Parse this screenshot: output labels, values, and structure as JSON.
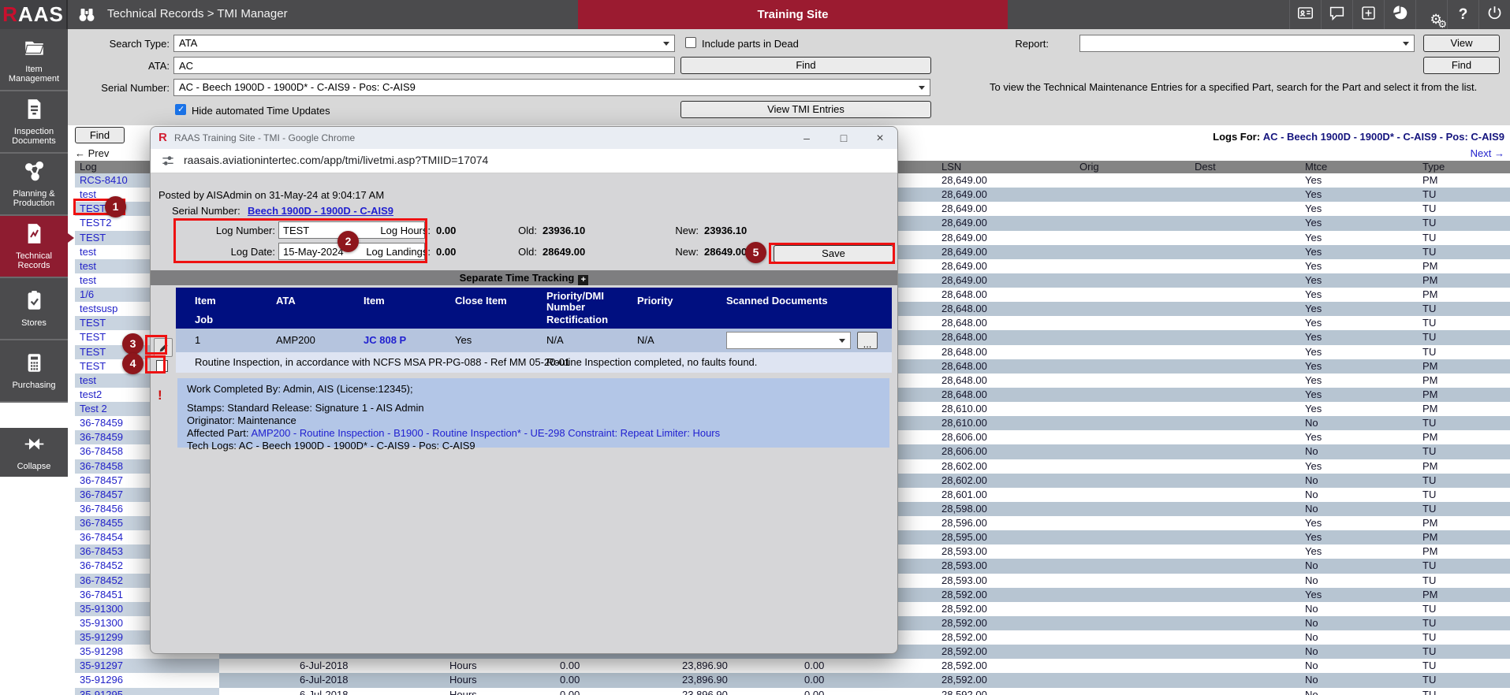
{
  "header": {
    "logo_r": "R",
    "logo_rest": "AAS",
    "breadcrumb": "Technical Records > TMI Manager",
    "banner": "Training Site",
    "toolbar_icons": [
      "id-card-icon",
      "chat-icon",
      "add-icon",
      "pie-chart-icon",
      "settings-icon",
      "help-icon",
      "power-icon"
    ]
  },
  "sidebar": {
    "items": [
      {
        "label": "Item Management",
        "icon": "folder-icon",
        "active": false
      },
      {
        "label": "Inspection Documents",
        "icon": "inspection-document-icon",
        "active": false
      },
      {
        "label": "Planning & Production",
        "icon": "planning-network-icon",
        "active": false
      },
      {
        "label": "Technical Records",
        "icon": "technical-records-icon",
        "active": true
      },
      {
        "label": "Stores",
        "icon": "stores-clipboard-icon",
        "active": false
      },
      {
        "label": "Purchasing",
        "icon": "calculator-icon",
        "active": false
      }
    ],
    "collapse_label": "Collapse",
    "collapse_icon": "collapse-icon"
  },
  "filters": {
    "search_type_label": "Search Type:",
    "search_type_value": "ATA",
    "include_dead_label": "Include parts in Dead",
    "include_dead_checked": false,
    "ata_label": "ATA:",
    "ata_value": "AC",
    "find_button": "Find",
    "serial_label": "Serial Number:",
    "serial_value": "AC - Beech 1900D - 1900D* - C-AIS9 - Pos: C-AIS9",
    "hide_time_updates_label": "Hide automated Time Updates",
    "hide_time_updates_checked": true,
    "view_tmi_button": "View TMI Entries",
    "report_label": "Report:",
    "report_value": "",
    "view_button": "View",
    "report_find_button": "Find",
    "hint": "To view the Technical Maintenance Entries for a specified Part, search for the Part and select it from the list."
  },
  "log_panel": {
    "find_button": "Find",
    "prev_link": "← Prev",
    "next_link": "Next →",
    "logs_for_label": "Logs For:",
    "logs_for_value": "AC - Beech 1900D - 1900D* - C-AIS9 - Pos: C-AIS9",
    "column_header": "Log",
    "selected_index": 4,
    "items": [
      "RCS-8410",
      "test",
      "TEST",
      "TEST2",
      "TEST",
      "test",
      "test",
      "test",
      "1/6",
      "testsusp",
      "TEST",
      "TEST",
      "TEST",
      "TEST",
      "test",
      "test2",
      "Test 2",
      "36-78459",
      "36-78459",
      "36-78458",
      "36-78458",
      "36-78457",
      "36-78457",
      "36-78456",
      "36-78455",
      "36-78454",
      "36-78453",
      "36-78452",
      "36-78452",
      "36-78451",
      "35-91300",
      "35-91300",
      "35-91299",
      "35-91298",
      "35-91297",
      "35-91296",
      "35-91295"
    ]
  },
  "records_table": {
    "columns": [
      "LSN",
      "Orig",
      "Dest",
      "Mtce",
      "Type"
    ],
    "rows": [
      {
        "lsn": "28,649.00",
        "mtce": "Yes",
        "type": "PM"
      },
      {
        "lsn": "28,649.00",
        "mtce": "Yes",
        "type": "TU"
      },
      {
        "lsn": "28,649.00",
        "mtce": "Yes",
        "type": "TU"
      },
      {
        "lsn": "28,649.00",
        "mtce": "Yes",
        "type": "TU"
      },
      {
        "lsn": "28,649.00",
        "mtce": "Yes",
        "type": "TU"
      },
      {
        "lsn": "28,649.00",
        "mtce": "Yes",
        "type": "TU"
      },
      {
        "lsn": "28,649.00",
        "mtce": "Yes",
        "type": "PM"
      },
      {
        "lsn": "28,649.00",
        "mtce": "Yes",
        "type": "PM"
      },
      {
        "lsn": "28,648.00",
        "mtce": "Yes",
        "type": "PM"
      },
      {
        "lsn": "28,648.00",
        "mtce": "Yes",
        "type": "TU"
      },
      {
        "lsn": "28,648.00",
        "mtce": "Yes",
        "type": "TU"
      },
      {
        "lsn": "28,648.00",
        "mtce": "Yes",
        "type": "TU"
      },
      {
        "lsn": "28,648.00",
        "mtce": "Yes",
        "type": "TU"
      },
      {
        "lsn": "28,648.00",
        "mtce": "Yes",
        "type": "PM"
      },
      {
        "lsn": "28,648.00",
        "mtce": "Yes",
        "type": "PM"
      },
      {
        "lsn": "28,648.00",
        "mtce": "Yes",
        "type": "PM"
      },
      {
        "lsn": "28,610.00",
        "mtce": "Yes",
        "type": "PM"
      },
      {
        "lsn": "28,610.00",
        "mtce": "No",
        "type": "TU"
      },
      {
        "lsn": "28,606.00",
        "mtce": "Yes",
        "type": "PM"
      },
      {
        "lsn": "28,606.00",
        "mtce": "No",
        "type": "TU"
      },
      {
        "lsn": "28,602.00",
        "mtce": "Yes",
        "type": "PM"
      },
      {
        "lsn": "28,602.00",
        "mtce": "No",
        "type": "TU"
      },
      {
        "lsn": "28,601.00",
        "mtce": "No",
        "type": "TU"
      },
      {
        "lsn": "28,598.00",
        "mtce": "No",
        "type": "TU"
      },
      {
        "lsn": "28,596.00",
        "mtce": "Yes",
        "type": "PM"
      },
      {
        "lsn": "28,595.00",
        "mtce": "Yes",
        "type": "PM"
      },
      {
        "lsn": "28,593.00",
        "mtce": "Yes",
        "type": "PM"
      },
      {
        "lsn": "28,593.00",
        "mtce": "No",
        "type": "TU"
      },
      {
        "lsn": "28,593.00",
        "mtce": "No",
        "type": "TU"
      },
      {
        "lsn": "28,592.00",
        "mtce": "Yes",
        "type": "PM"
      },
      {
        "lsn": "28,592.00",
        "mtce": "No",
        "type": "TU"
      },
      {
        "lsn": "28,592.00",
        "mtce": "No",
        "type": "TU"
      },
      {
        "lsn": "28,592.00",
        "mtce": "No",
        "type": "TU"
      },
      {
        "lsn": "28,592.00",
        "mtce": "No",
        "type": "TU"
      },
      {
        "lsn": "28,592.00",
        "mtce": "No",
        "type": "TU"
      },
      {
        "lsn": "28,592.00",
        "mtce": "No",
        "type": "TU"
      },
      {
        "lsn": "28,592.00",
        "mtce": "No",
        "type": "TU"
      }
    ],
    "visible_detail_rows": [
      {
        "row_index": 34,
        "date": "6-Jul-2018",
        "counter": "Hours",
        "hours": "0.00",
        "tsn": "23,896.90",
        "landings": "0.00"
      },
      {
        "row_index": 35,
        "date": "6-Jul-2018",
        "counter": "Hours",
        "hours": "0.00",
        "tsn": "23,896.90",
        "landings": "0.00"
      },
      {
        "row_index": 36,
        "date": "6-Jul-2018",
        "counter": "Hours",
        "hours": "0.00",
        "tsn": "23,896.90",
        "landings": "0.00"
      }
    ]
  },
  "popup": {
    "favicon_letter": "R",
    "title": "RAAS Training Site - TMI - Google Chrome",
    "minimize_glyph": "–",
    "maximize_glyph": "□",
    "close_glyph": "×",
    "url": "raasais.aviationintertec.com/app/tmi/livetmi.asp?TMIID=17074",
    "posted": "Posted by AISAdmin on 31-May-24 at 9:04:17 AM",
    "serial_label": "Serial Number:",
    "serial_link": "Beech 1900D - 1900D - C-AIS9",
    "log_number_label": "Log Number:",
    "log_number_value": "TEST",
    "log_date_label": "Log Date:",
    "log_date_value": "15-May-2024",
    "log_hours_label": "Log Hours:",
    "log_hours_value": "0.00",
    "hours_old_label": "Old:",
    "hours_old_value": "23936.10",
    "hours_new_label": "New:",
    "hours_new_value": "23936.10",
    "log_landings_label": "Log Landings:",
    "log_landings_value": "0.00",
    "landings_old_label": "Old:",
    "landings_old_value": "28649.00",
    "landings_new_label": "New:",
    "landings_new_value": "28649.00",
    "save_button": "Save",
    "tracking_header": "Separate Time Tracking",
    "table": {
      "col_item": "Item",
      "col_ata": "ATA",
      "col_item2": "Item",
      "col_close": "Close Item",
      "col_priority_dmi": "Priority/DMI Number",
      "col_priority": "Priority",
      "col_scanned": "Scanned Documents",
      "col_job": "Job",
      "col_rectification": "Rectification",
      "row_num": "1",
      "row_ata": "AMP200",
      "row_item": "JC 808 P",
      "row_close": "Yes",
      "row_priority_dmi": "N/A",
      "row_priority": "N/A",
      "ellipsis_button": "...",
      "job_text": "Routine Inspection, in accordance with NCFS MSA PR-PG-088 - Ref MM 05-20-01",
      "rectification_text": "Routine Inspection completed, no faults found."
    },
    "details": {
      "work_completed": "Work Completed By: Admin, AIS (License:12345);",
      "stamps": "Stamps: Standard Release: Signature 1 - AIS Admin",
      "originator": "Originator: Maintenance",
      "affected_part_label": "Affected Part:",
      "affected_part_link": "AMP200 - Routine Inspection - B1900 - Routine Inspection* - UE-298 Constraint: Repeat Limiter: Hours",
      "tech_logs": "Tech Logs: AC - Beech 1900D - 1900D* - C-AIS9 - Pos: C-AIS9"
    }
  },
  "annotations": {
    "badges": [
      "1",
      "2",
      "3",
      "4",
      "5"
    ],
    "box_color": "#ee1111",
    "badge_color": "#8e161c"
  },
  "colors": {
    "brand_maroon": "#9b1b30",
    "header_gray": "#4b4b4d",
    "link_blue": "#2121c8",
    "navy_table_header": "#000f80",
    "row_alt_blue": "#b7c5d2"
  }
}
